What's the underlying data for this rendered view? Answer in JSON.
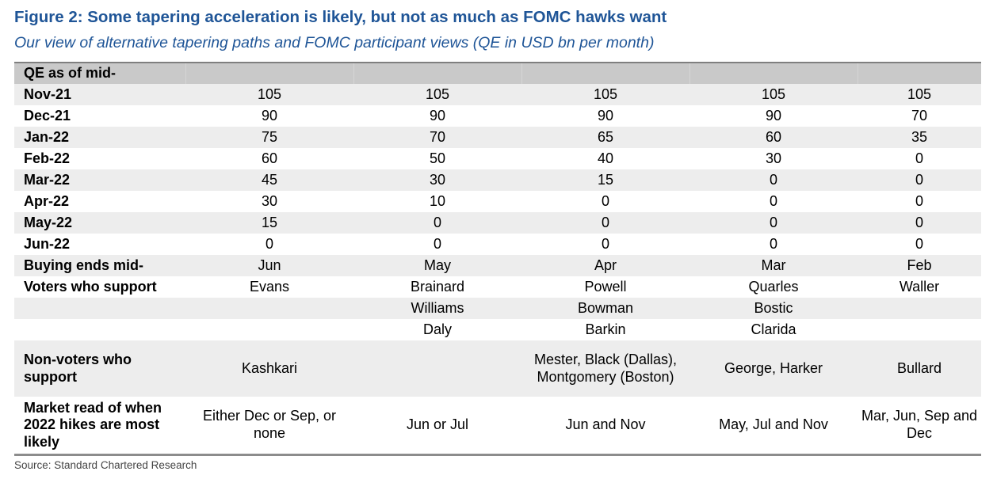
{
  "title": "Figure 2: Some tapering acceleration is likely, but not as much as FOMC hawks want",
  "subtitle": "Our view of alternative tapering paths and  FOMC participant views (QE in USD bn per month)",
  "header_label": "QE as of mid-",
  "rows": [
    {
      "label": "Nov-21",
      "values": [
        "105",
        "105",
        "105",
        "105",
        "105"
      ]
    },
    {
      "label": "Dec-21",
      "values": [
        "90",
        "90",
        "90",
        "90",
        "70"
      ]
    },
    {
      "label": "Jan-22",
      "values": [
        "75",
        "70",
        "65",
        "60",
        "35"
      ]
    },
    {
      "label": "Feb-22",
      "values": [
        "60",
        "50",
        "40",
        "30",
        "0"
      ]
    },
    {
      "label": "Mar-22",
      "values": [
        "45",
        "30",
        "15",
        "0",
        "0"
      ]
    },
    {
      "label": "Apr-22",
      "values": [
        "30",
        "10",
        "0",
        "0",
        "0"
      ]
    },
    {
      "label": "May-22",
      "values": [
        "15",
        "0",
        "0",
        "0",
        "0"
      ]
    },
    {
      "label": "Jun-22",
      "values": [
        "0",
        "0",
        "0",
        "0",
        "0"
      ]
    },
    {
      "label": "Buying ends mid-",
      "values": [
        "Jun",
        "May",
        "Apr",
        "Mar",
        "Feb"
      ]
    },
    {
      "label": "Voters who support",
      "values": [
        "Evans",
        "Brainard",
        "Powell",
        "Quarles",
        "Waller"
      ]
    },
    {
      "label": "",
      "values": [
        "",
        "Williams",
        "Bowman",
        "Bostic",
        ""
      ]
    },
    {
      "label": "",
      "values": [
        "",
        "Daly",
        "Barkin",
        "Clarida",
        ""
      ]
    },
    {
      "label": "Non-voters who support",
      "values": [
        "Kashkari",
        "",
        "Mester, Black (Dallas), Montgomery (Boston)",
        "George, Harker",
        "Bullard"
      ]
    },
    {
      "label": "Market read of when 2022 hikes are most likely",
      "values": [
        "Either Dec or Sep, or none",
        "Jun or Jul",
        "Jun and Nov",
        "May, Jul and Nov",
        "Mar, Jun, Sep and Dec"
      ]
    }
  ],
  "source": "Source: Standard Chartered Research"
}
